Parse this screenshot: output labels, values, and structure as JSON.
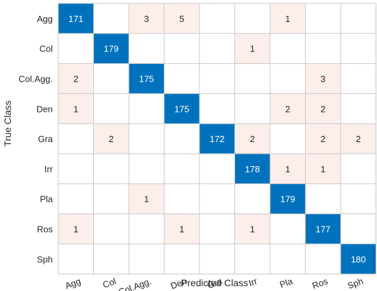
{
  "chart_data": {
    "type": "heatmap",
    "title": "",
    "xlabel": "Predicted Class",
    "ylabel": "True Class",
    "categories": [
      "Agg",
      "Col",
      "Col.Agg.",
      "Den",
      "Gra",
      "Irr",
      "Pla",
      "Ros",
      "Sph"
    ],
    "matrix": [
      [
        171,
        0,
        3,
        5,
        0,
        0,
        1,
        0,
        0
      ],
      [
        0,
        179,
        0,
        0,
        0,
        1,
        0,
        0,
        0
      ],
      [
        2,
        0,
        175,
        0,
        0,
        0,
        0,
        3,
        0
      ],
      [
        1,
        0,
        0,
        175,
        0,
        0,
        2,
        2,
        0
      ],
      [
        0,
        2,
        0,
        0,
        172,
        2,
        0,
        2,
        2
      ],
      [
        0,
        0,
        0,
        0,
        0,
        178,
        1,
        1,
        0
      ],
      [
        0,
        0,
        1,
        0,
        0,
        0,
        179,
        0,
        0
      ],
      [
        1,
        0,
        0,
        1,
        0,
        1,
        0,
        177,
        0
      ],
      [
        0,
        0,
        0,
        0,
        0,
        0,
        0,
        0,
        180
      ]
    ],
    "grid": true,
    "colors": {
      "diagonal": "#0072BD",
      "off_diagonal": "#FBEEEB",
      "empty": "#FFFFFF",
      "diagonal_text": "#FFFFFF",
      "off_diagonal_text": "#262626",
      "grid": "#C8C8C8",
      "axis_text": "#262626"
    }
  }
}
